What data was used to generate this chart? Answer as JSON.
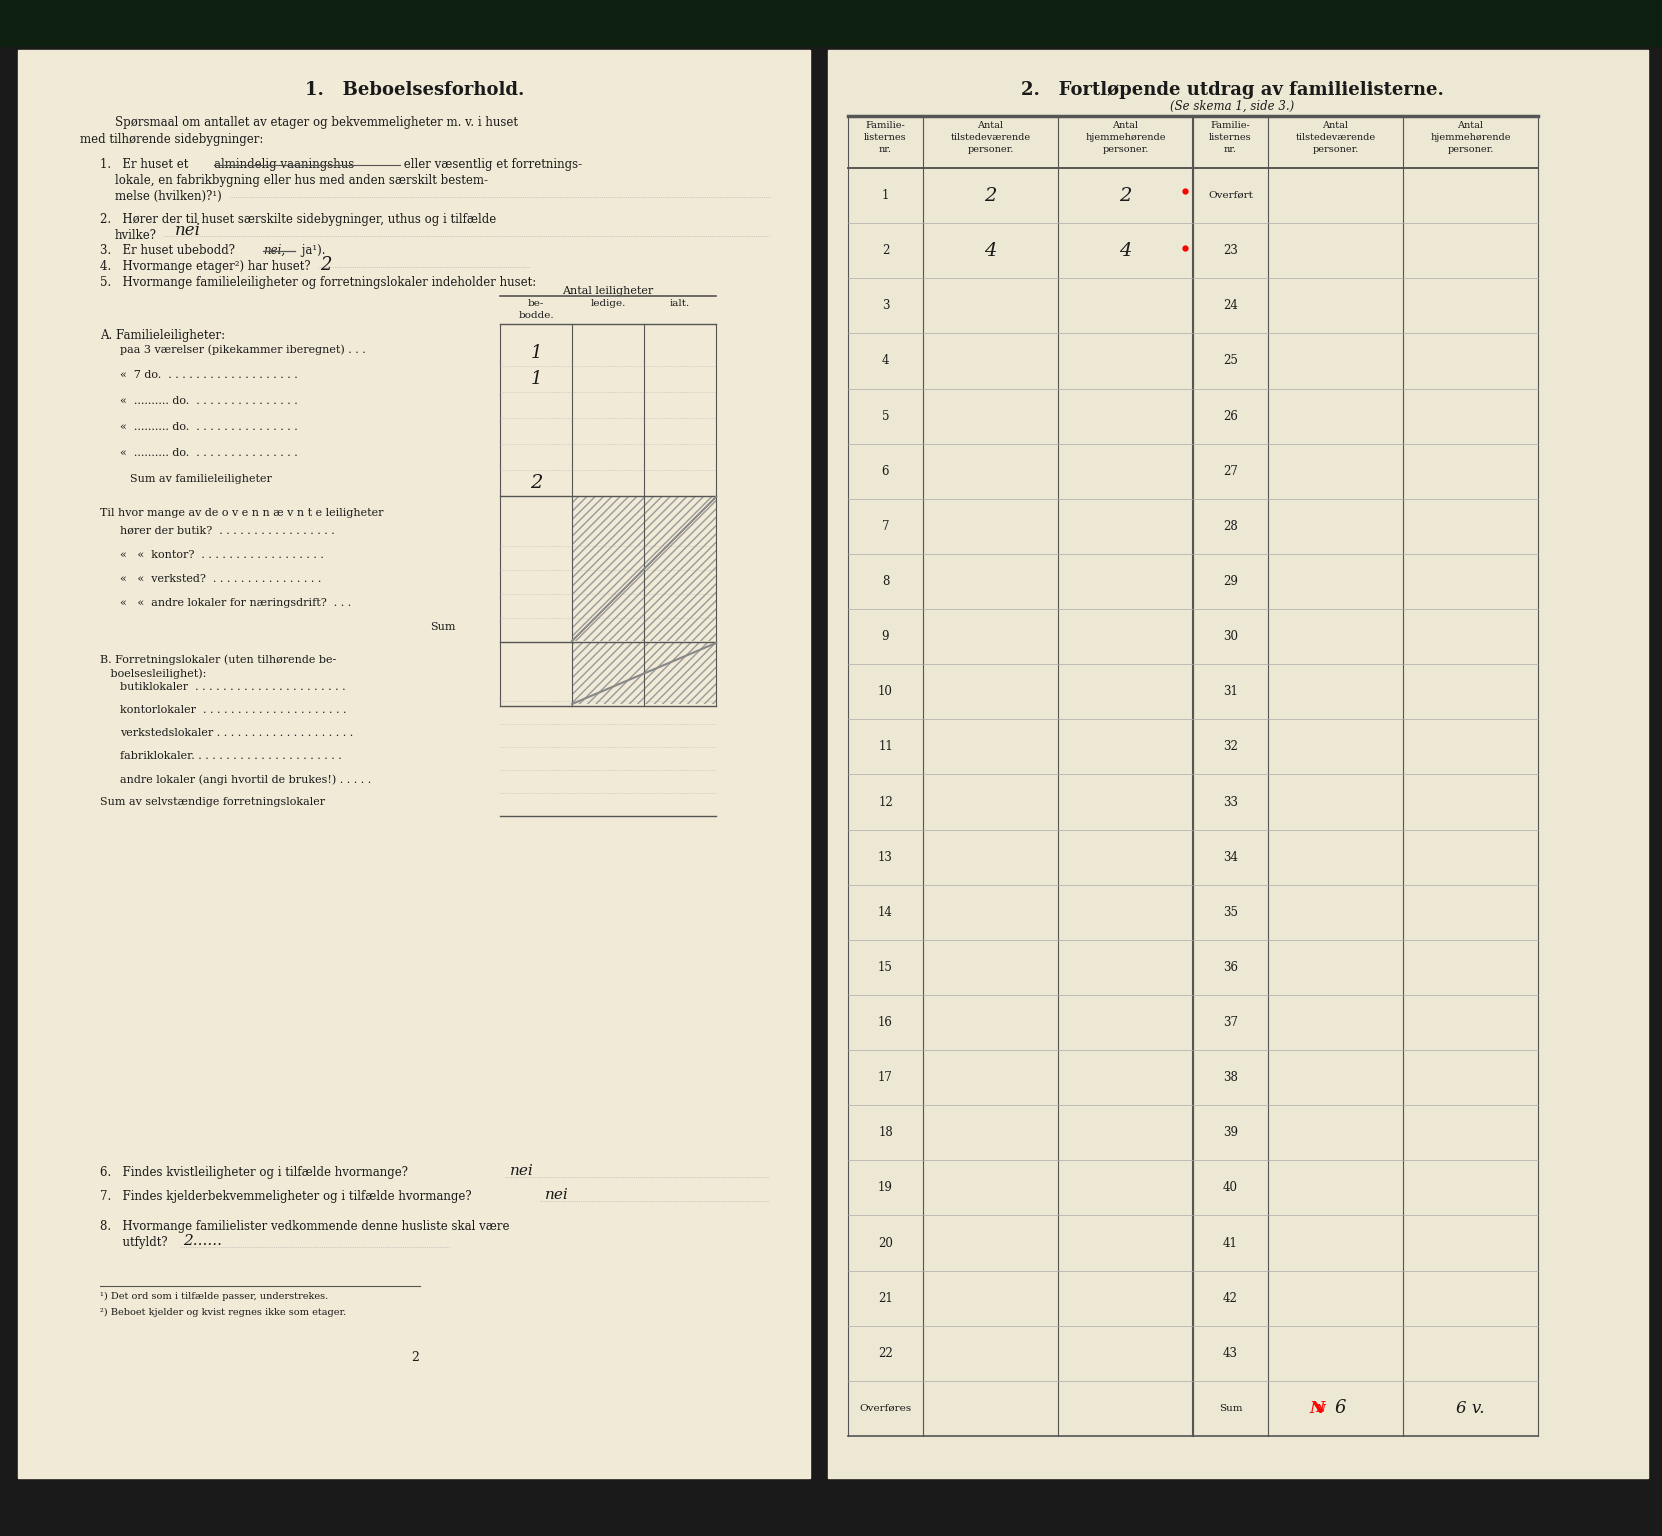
{
  "left_title": "1.   Beboelsesforhold.",
  "right_title": "2.   Fortløpende utdrag av familielisterne.",
  "right_subtitle": "(Se skema 1, side 3.)",
  "row_numbers_left": [
    1,
    2,
    3,
    4,
    5,
    6,
    7,
    8,
    9,
    10,
    11,
    12,
    13,
    14,
    15,
    16,
    17,
    18,
    19,
    20,
    21,
    22
  ],
  "row_numbers_right": [
    "Overført",
    23,
    24,
    25,
    26,
    27,
    28,
    29,
    30,
    31,
    32,
    33,
    34,
    35,
    36,
    37,
    38,
    39,
    40,
    41,
    42,
    43
  ],
  "col_headers": [
    "Familie-\nlisternes\nnr.",
    "Antal\ntilstedeværende\npersoner.",
    "Antal\nhjemmehørende\npersoner."
  ],
  "handwriting_q6": "nei",
  "handwriting_q7": "nei",
  "handwriting_q8": "2......",
  "handwriting_a1": "1",
  "handwriting_a2": "1",
  "handwriting_sum_a": "2",
  "footnote1": "¹) Det ord som i tilfælde passer, understrekes.",
  "footnote2": "²) Beboet kjelder og kvist regnes ikke som etager.",
  "page_number": "2",
  "col_headers_table": [
    "be-\nbodde.",
    "ledige.",
    "ialt."
  ],
  "antal_leiligheter_label": "Antal leiligheter",
  "section_a_label": "A. Familieleiligheter:",
  "sum_familieleiligheter": "Sum av familieleiligheter",
  "sum_label2": "Sum",
  "section_b_label_1": "B. Forretningslokaler (uten tilhørende be-",
  "section_b_label_2": "   boelsesleilighet):",
  "sum_selvstaendige": "Sum av selvstændige forretningslokaler",
  "question6": "6.   Findes kvistleiligheter og i tilfælde hvormange?",
  "question7": "7.   Findes kjelderbekvemmeligheter og i tilfælde hvormange?",
  "question8_1": "8.   Hvormange familielister vedkommende denne husliste skal være",
  "question8_2": "      utfyldt?",
  "page_color_left": "#f0ead6",
  "page_color_right": "#ede8d3",
  "text_color": "#1a1a1a",
  "line_color": "#555555",
  "light_line_color": "#aaaaaa",
  "bg_color": "#1a1a1a",
  "top_bar_color": "#0d2010"
}
